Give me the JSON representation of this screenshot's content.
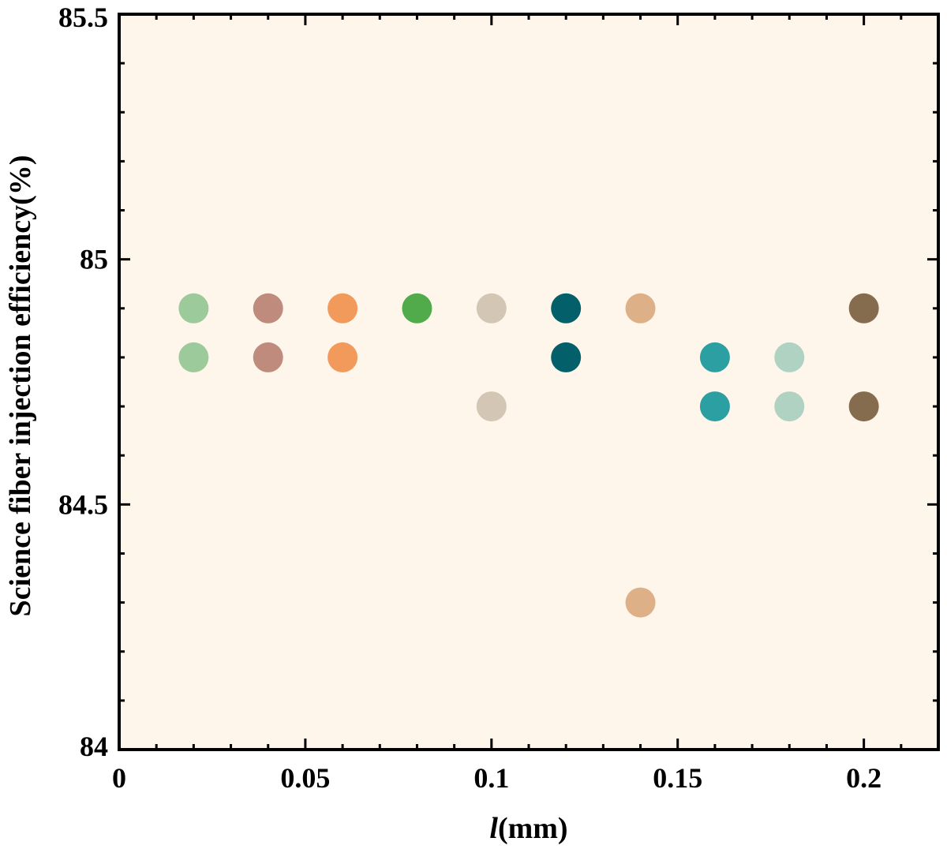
{
  "chart_data": {
    "type": "scatter",
    "title": "",
    "xlabel_italic": "l",
    "xlabel_rest": "(mm)",
    "ylabel": "Science fiber injection efficiency(%)",
    "xlim": [
      0,
      0.22
    ],
    "ylim": [
      84,
      85.5
    ],
    "x_ticks": [
      0,
      0.05,
      0.1,
      0.15,
      0.2
    ],
    "x_tick_labels": [
      "0",
      "0.05",
      "0.1",
      "0.15",
      "0.2"
    ],
    "y_ticks": [
      84,
      84.5,
      85,
      85.5
    ],
    "y_tick_labels": [
      "84",
      "84.5",
      "85",
      "85.5"
    ],
    "grid": false,
    "legend": "none",
    "plot_background": "#FEF6EA",
    "points": [
      {
        "x": 0.02,
        "y": 84.9,
        "color": "#9DCA9A"
      },
      {
        "x": 0.02,
        "y": 84.8,
        "color": "#9DCA9A"
      },
      {
        "x": 0.04,
        "y": 84.9,
        "color": "#BF8B7C"
      },
      {
        "x": 0.04,
        "y": 84.8,
        "color": "#BF8B7C"
      },
      {
        "x": 0.06,
        "y": 84.9,
        "color": "#F29A5C"
      },
      {
        "x": 0.06,
        "y": 84.8,
        "color": "#F29A5C"
      },
      {
        "x": 0.08,
        "y": 84.9,
        "color": "#52AB4A"
      },
      {
        "x": 0.1,
        "y": 84.9,
        "color": "#D3C6B4"
      },
      {
        "x": 0.1,
        "y": 84.7,
        "color": "#D3C6B4"
      },
      {
        "x": 0.12,
        "y": 84.9,
        "color": "#03606A"
      },
      {
        "x": 0.12,
        "y": 84.8,
        "color": "#03606A"
      },
      {
        "x": 0.14,
        "y": 84.9,
        "color": "#DDB088"
      },
      {
        "x": 0.14,
        "y": 84.3,
        "color": "#DDB088"
      },
      {
        "x": 0.16,
        "y": 84.8,
        "color": "#2C9FA3"
      },
      {
        "x": 0.16,
        "y": 84.7,
        "color": "#2C9FA3"
      },
      {
        "x": 0.18,
        "y": 84.8,
        "color": "#B0D2C3"
      },
      {
        "x": 0.18,
        "y": 84.7,
        "color": "#B0D2C3"
      },
      {
        "x": 0.2,
        "y": 84.9,
        "color": "#856C4E"
      },
      {
        "x": 0.2,
        "y": 84.7,
        "color": "#856C4E"
      }
    ]
  }
}
